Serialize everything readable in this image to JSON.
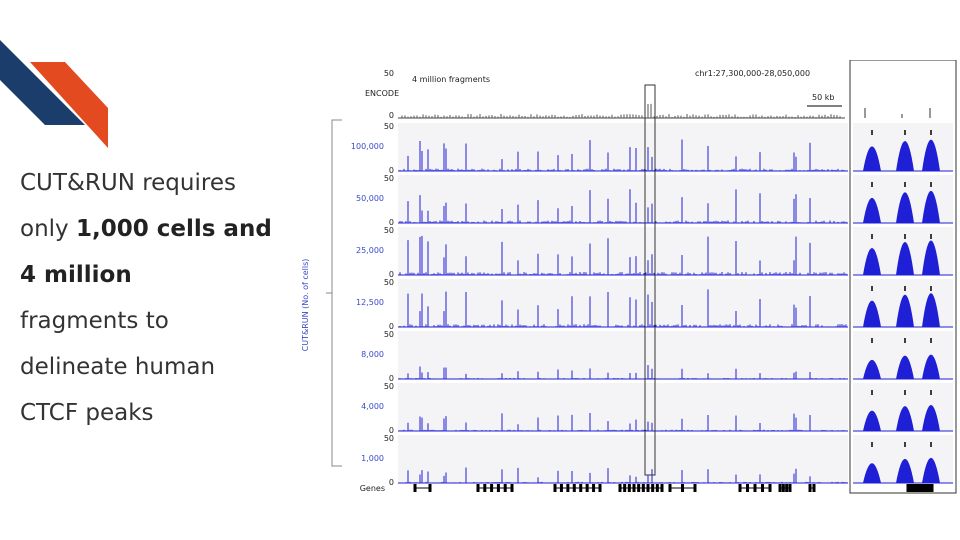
{
  "slide": {
    "caption": {
      "line1": "CUT&RUN requires",
      "line2_pre": "only ",
      "line2_bold": "1,000 cells and",
      "line3_bold": "4 million",
      "line4": "fragments to",
      "line5": "delineate human",
      "line6": "CTCF peaks"
    }
  },
  "figure": {
    "encode_label": "ENCODE",
    "encode_note": "4 million fragments",
    "coords": "chr1:27,300,000-28,050,000",
    "scale_bar": "50 kb",
    "y_axis_label": "CUT&RUN (No. of cells)",
    "scale_max": "50",
    "scale_min": "0",
    "genes_label": "Genes",
    "tracks": [
      "100,000",
      "50,000",
      "25,000",
      "12,500",
      "8,000",
      "4,000",
      "1,000"
    ],
    "track_intensity": [
      0.8,
      0.85,
      1.0,
      0.95,
      0.35,
      0.45,
      0.4
    ],
    "colors": {
      "signal": "#1f1fd6",
      "encode": "#555555",
      "band_dark": "#1b3d6b",
      "band_orange": "#e34a1f",
      "track_label": "#3a4bc8"
    }
  }
}
